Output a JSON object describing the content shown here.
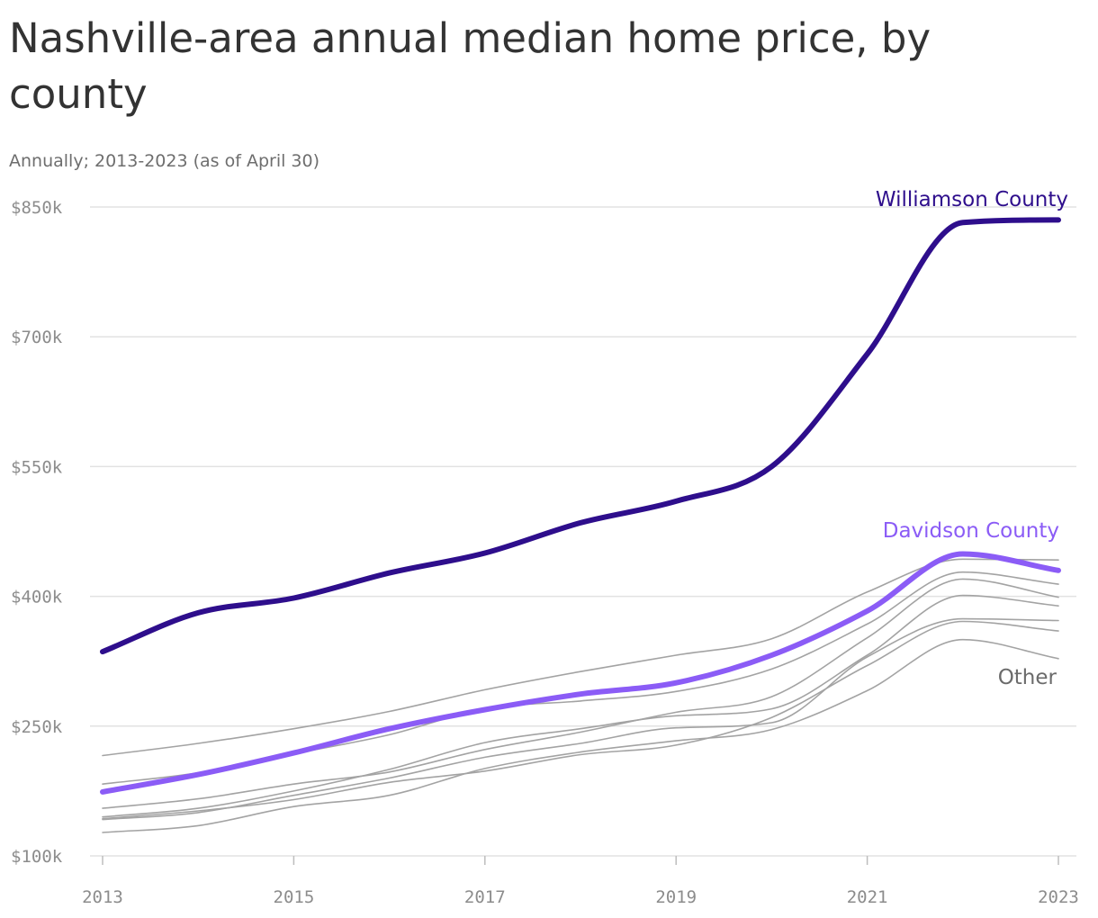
{
  "header": {
    "title": "Nashville-area annual median home price, by county",
    "subtitle": "Annually; 2013-2023 (as of April 30)"
  },
  "colors": {
    "williamson": "#2e0e8c",
    "davidson": "#8b5cf6",
    "other": "#a3a3a3",
    "grid": "#e2e2e2"
  },
  "chart_data": {
    "type": "line",
    "title": "Nashville-area annual median home price, by county",
    "subtitle": "Annually; 2013-2023 (as of April 30)",
    "xlabel": "",
    "ylabel": "",
    "x": [
      2013,
      2014,
      2015,
      2016,
      2017,
      2018,
      2019,
      2020,
      2021,
      2022,
      2023
    ],
    "xticks": [
      "2013",
      "2015",
      "2017",
      "2019",
      "2021",
      "2023"
    ],
    "yticks": [
      "$100k",
      "$250k",
      "$400k",
      "$550k",
      "$700k",
      "$850k"
    ],
    "ylim": [
      100000,
      850000
    ],
    "grid": true,
    "series": [
      {
        "name": "Williamson County",
        "role": "highlight-dark",
        "values": [
          336000,
          381000,
          398000,
          427000,
          450000,
          485000,
          510000,
          550000,
          680000,
          832000,
          835000
        ]
      },
      {
        "name": "Davidson County",
        "role": "highlight-light",
        "values": [
          174000,
          194000,
          219000,
          247000,
          269000,
          287000,
          300000,
          332000,
          383000,
          449000,
          430000
        ]
      },
      {
        "name": "Other",
        "role": "other",
        "values": [
          216000,
          230000,
          247000,
          267000,
          292000,
          313000,
          332000,
          351000,
          405000,
          443000,
          442000
        ]
      },
      {
        "name": "",
        "role": "other",
        "values": [
          183000,
          196000,
          218000,
          240000,
          270000,
          279000,
          290000,
          316000,
          368000,
          428000,
          414000
        ]
      },
      {
        "name": "",
        "role": "other",
        "values": [
          155000,
          166000,
          183000,
          197000,
          223000,
          243000,
          266000,
          284000,
          352000,
          420000,
          399000
        ]
      },
      {
        "name": "",
        "role": "other",
        "values": [
          145000,
          155000,
          175000,
          200000,
          231000,
          247000,
          262000,
          270000,
          332000,
          401000,
          389000
        ]
      },
      {
        "name": "",
        "role": "other",
        "values": [
          142000,
          150000,
          170000,
          190000,
          214000,
          230000,
          248000,
          254000,
          330000,
          374000,
          372000
        ]
      },
      {
        "name": "",
        "role": "other",
        "values": [
          143000,
          152000,
          165000,
          185000,
          198000,
          217000,
          228000,
          260000,
          320000,
          371000,
          360000
        ]
      },
      {
        "name": "",
        "role": "other",
        "values": [
          127000,
          135000,
          157000,
          170000,
          201000,
          220000,
          233000,
          246000,
          291000,
          350000,
          328000
        ]
      }
    ],
    "labels": {
      "williamson": "Williamson County",
      "davidson": "Davidson County",
      "other": "Other"
    }
  }
}
